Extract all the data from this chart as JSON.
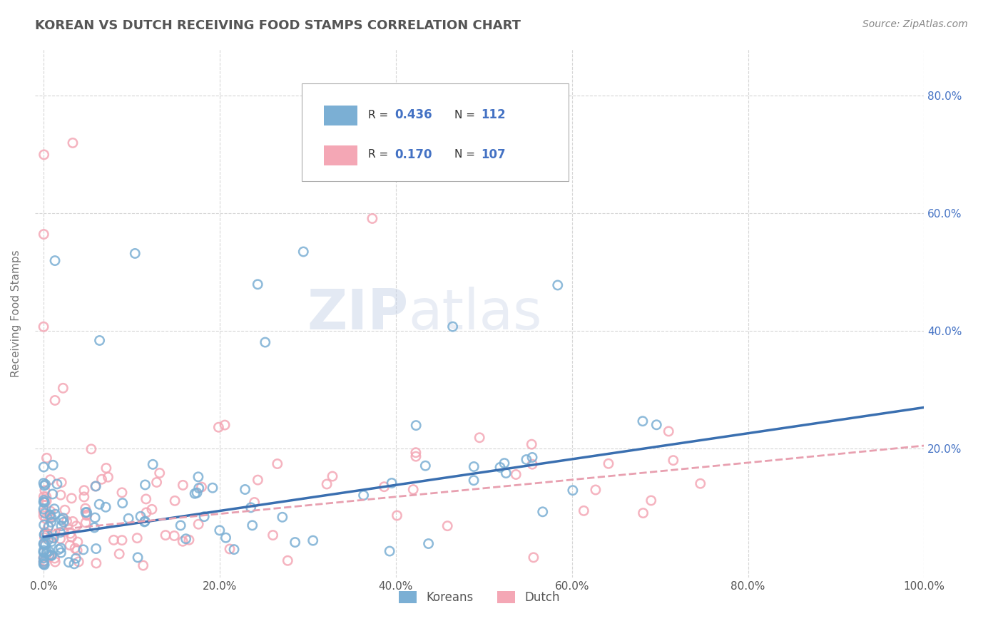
{
  "title": "KOREAN VS DUTCH RECEIVING FOOD STAMPS CORRELATION CHART",
  "source": "Source: ZipAtlas.com",
  "ylabel": "Receiving Food Stamps",
  "xlabel": "",
  "xlim": [
    -0.01,
    1.0
  ],
  "ylim": [
    -0.02,
    0.88
  ],
  "xticks": [
    0.0,
    0.2,
    0.4,
    0.6,
    0.8,
    1.0
  ],
  "xtick_labels": [
    "0.0%",
    "20.0%",
    "40.0%",
    "60.0%",
    "80.0%",
    "100.0%"
  ],
  "yticks": [
    0.2,
    0.4,
    0.6,
    0.8
  ],
  "ytick_labels": [
    "20.0%",
    "40.0%",
    "60.0%",
    "80.0%"
  ],
  "korean_R": 0.436,
  "korean_N": 112,
  "dutch_R": 0.17,
  "dutch_N": 107,
  "korean_color": "#7BAFD4",
  "dutch_color": "#F4A7B5",
  "korean_line_color": "#3A6FB0",
  "dutch_line_color": "#E8A0B0",
  "watermark_zip": "ZIP",
  "watermark_atlas": "atlas",
  "background_color": "#ffffff",
  "grid_color": "#cccccc",
  "title_color": "#555555",
  "legend_text_color": "#4472C4",
  "legend_label_color": "#333333",
  "korean_line_intercept": 0.05,
  "korean_line_slope": 0.22,
  "dutch_line_intercept": 0.06,
  "dutch_line_slope": 0.145
}
